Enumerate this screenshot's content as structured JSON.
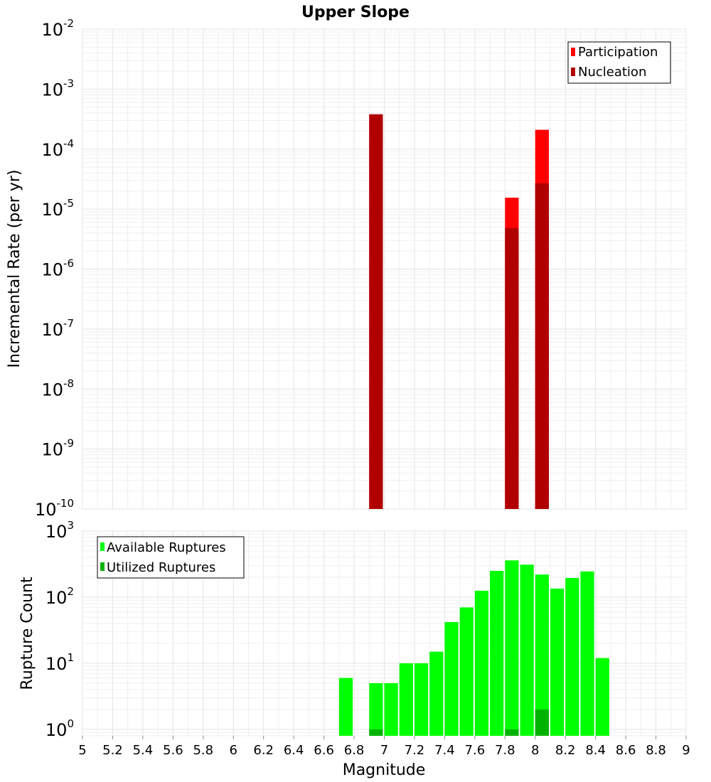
{
  "chart_data": [
    {
      "type": "bar",
      "title": "Upper Slope",
      "xlabel": "",
      "ylabel": "Incremental Rate (per yr)",
      "yscale": "log",
      "ylim": [
        1e-10,
        0.01
      ],
      "xlim": [
        5,
        9
      ],
      "bar_width": 0.1,
      "grid": true,
      "legend_position": "top-right",
      "y_ticks": [
        {
          "base": "10",
          "exp": "-10"
        },
        {
          "base": "10",
          "exp": "-9"
        },
        {
          "base": "10",
          "exp": "-8"
        },
        {
          "base": "10",
          "exp": "-7"
        },
        {
          "base": "10",
          "exp": "-6"
        },
        {
          "base": "10",
          "exp": "-5"
        },
        {
          "base": "10",
          "exp": "-4"
        },
        {
          "base": "10",
          "exp": "-3"
        },
        {
          "base": "10",
          "exp": "-2"
        }
      ],
      "series": [
        {
          "name": "Participation",
          "color": "#ff0000",
          "x": [
            6.95,
            7.85,
            8.05
          ],
          "values": [
            0.00038,
            1.55e-05,
            0.00021
          ]
        },
        {
          "name": "Nucleation",
          "color": "#b00000",
          "x": [
            6.95,
            7.85,
            8.05
          ],
          "values": [
            0.00038,
            4.8e-06,
            2.7e-05
          ]
        }
      ]
    },
    {
      "type": "bar",
      "xlabel": "Magnitude",
      "ylabel": "Rupture Count",
      "yscale": "log",
      "ylim": [
        0.8,
        1000
      ],
      "xlim": [
        5,
        9
      ],
      "bar_width": 0.1,
      "grid": true,
      "legend_position": "top-left",
      "x_ticks": [
        "5",
        "5.2",
        "5.4",
        "5.6",
        "5.8",
        "6",
        "6.2",
        "6.4",
        "6.6",
        "6.8",
        "7",
        "7.2",
        "7.4",
        "7.6",
        "7.8",
        "8",
        "8.2",
        "8.4",
        "8.6",
        "8.8",
        "9"
      ],
      "y_ticks": [
        {
          "base": "10",
          "exp": "0"
        },
        {
          "base": "10",
          "exp": "1"
        },
        {
          "base": "10",
          "exp": "2"
        },
        {
          "base": "10",
          "exp": "3"
        }
      ],
      "series": [
        {
          "name": "Available Ruptures",
          "color": "#00ff00",
          "x": [
            6.75,
            6.95,
            7.05,
            7.15,
            7.25,
            7.35,
            7.45,
            7.55,
            7.65,
            7.75,
            7.85,
            7.95,
            8.05,
            8.15,
            8.25,
            8.35,
            8.45
          ],
          "values": [
            6,
            5,
            5,
            10,
            10,
            15,
            42,
            70,
            125,
            250,
            360,
            310,
            220,
            135,
            195,
            245,
            12
          ]
        },
        {
          "name": "Utilized Ruptures",
          "color": "#00b300",
          "x": [
            6.95,
            7.85,
            8.05
          ],
          "values": [
            1,
            1,
            2
          ]
        }
      ]
    }
  ]
}
